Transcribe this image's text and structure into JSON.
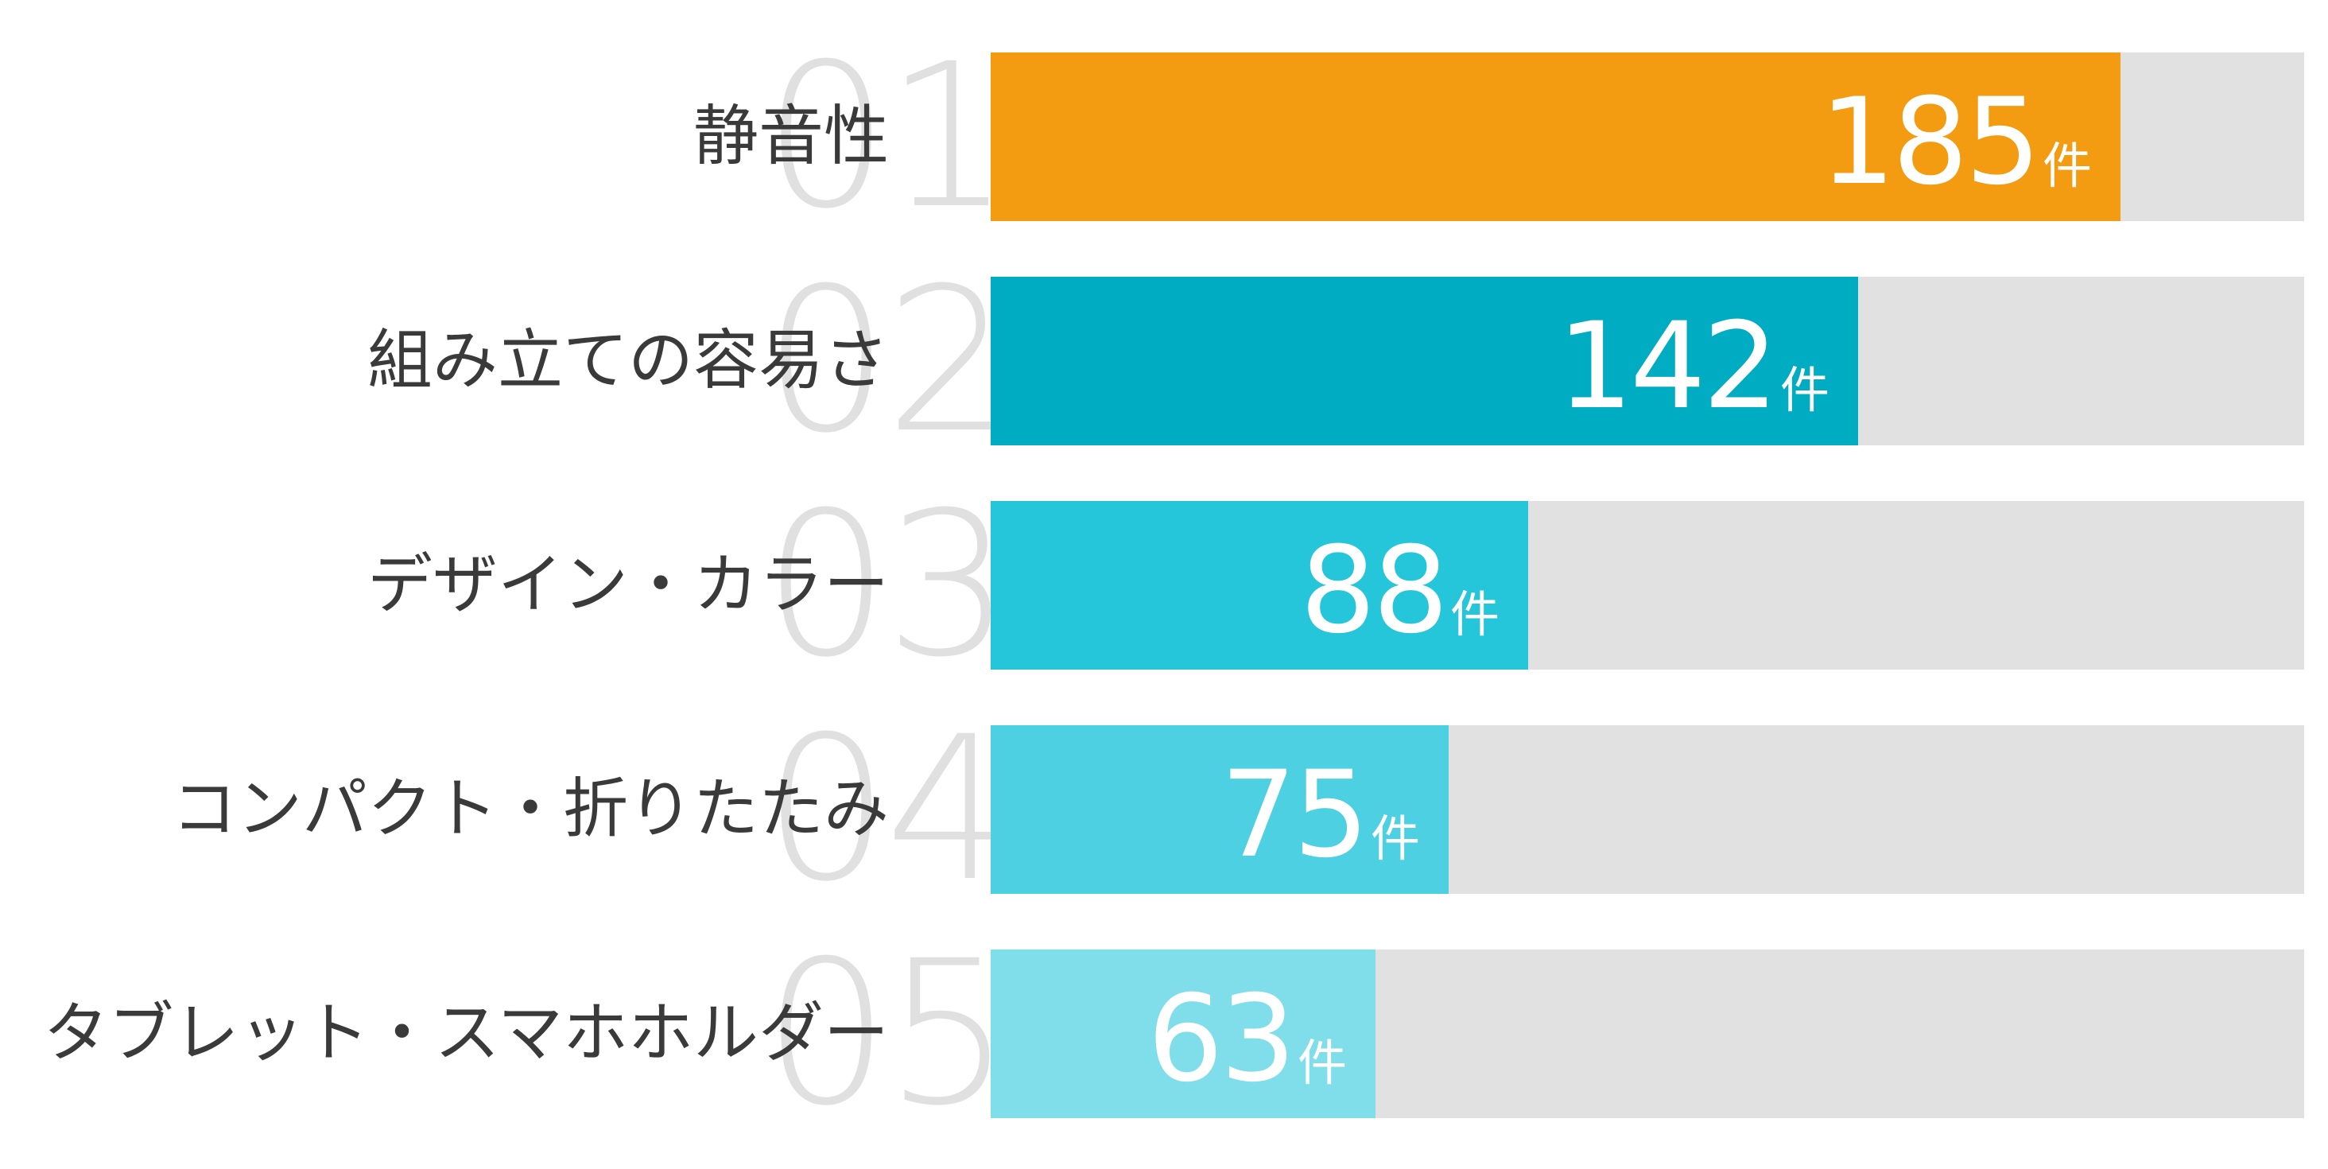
{
  "chart_data": {
    "type": "bar",
    "orientation": "horizontal",
    "max": 215,
    "categories": [
      "静音性",
      "組み立ての容易さ",
      "デザイン・カラー",
      "コンパクト・折りたたみ",
      "タブレット・スマホホルダー"
    ],
    "ranks": [
      "01",
      "02",
      "03",
      "04",
      "05"
    ],
    "values": [
      185,
      142,
      88,
      75,
      63
    ],
    "unit": "件",
    "colors": [
      "#f39c12",
      "#00acc1",
      "#26c6da",
      "#4dd0e1",
      "#80deea"
    ],
    "track_color": "#e1e1e1"
  }
}
